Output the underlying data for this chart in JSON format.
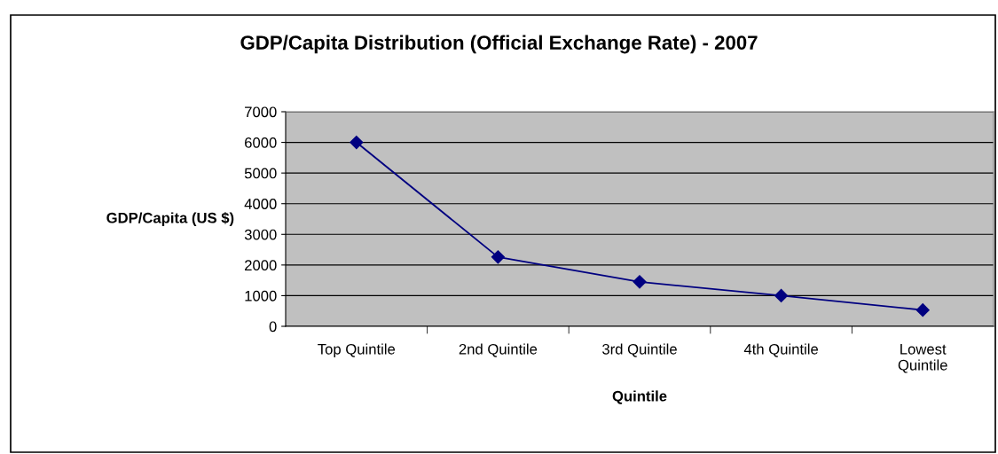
{
  "chart_data": {
    "type": "line",
    "title": "GDP/Capita Distribution (Official Exchange Rate) - 2007",
    "xlabel": "Quintile",
    "ylabel": "GDP/Capita (US $)",
    "categories": [
      "Top Quintile",
      "2nd Quintile",
      "3rd Quintile",
      "4th Quintile",
      "Lowest\nQuintile"
    ],
    "series": [
      {
        "color": "#000080",
        "values": [
          6000,
          2260,
          1450,
          1000,
          530
        ]
      }
    ],
    "ylim": [
      0,
      7000
    ],
    "yticks": [
      0,
      1000,
      2000,
      3000,
      4000,
      5000,
      6000,
      7000
    ],
    "grid": "y",
    "marker": "diamond",
    "line_style": "solid"
  }
}
